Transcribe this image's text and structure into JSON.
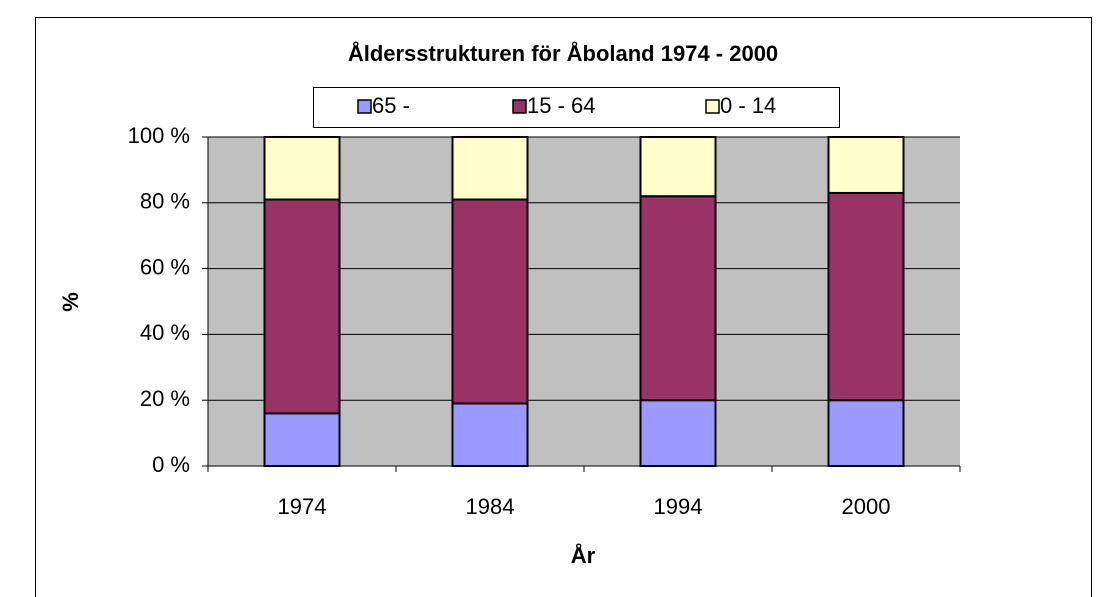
{
  "chart_data": {
    "type": "stacked_bar",
    "title": "Åldersstrukturen för Åboland 1974 - 2000",
    "x_label": "År",
    "y_label": "%",
    "categories": [
      "1974",
      "1984",
      "1994",
      "2000"
    ],
    "series": [
      {
        "name": "65 -",
        "color": "#9999ff",
        "values": [
          16,
          19,
          20,
          20
        ]
      },
      {
        "name": "15 - 64",
        "color": "#993366",
        "values": [
          65,
          62,
          62,
          63
        ]
      },
      {
        "name": "0 - 14",
        "color": "#ffffcc",
        "values": [
          19,
          19,
          18,
          17
        ]
      }
    ],
    "ylim": [
      0,
      100
    ],
    "yticks": [
      {
        "value": 0,
        "label": "0 %"
      },
      {
        "value": 20,
        "label": "20 %"
      },
      {
        "value": 40,
        "label": "40 %"
      },
      {
        "value": 60,
        "label": "60 %"
      },
      {
        "value": 80,
        "label": "80 %"
      },
      {
        "value": 100,
        "label": "100 %"
      }
    ],
    "grid": true,
    "plot_background": "#c0c0c0",
    "legend": "top"
  }
}
